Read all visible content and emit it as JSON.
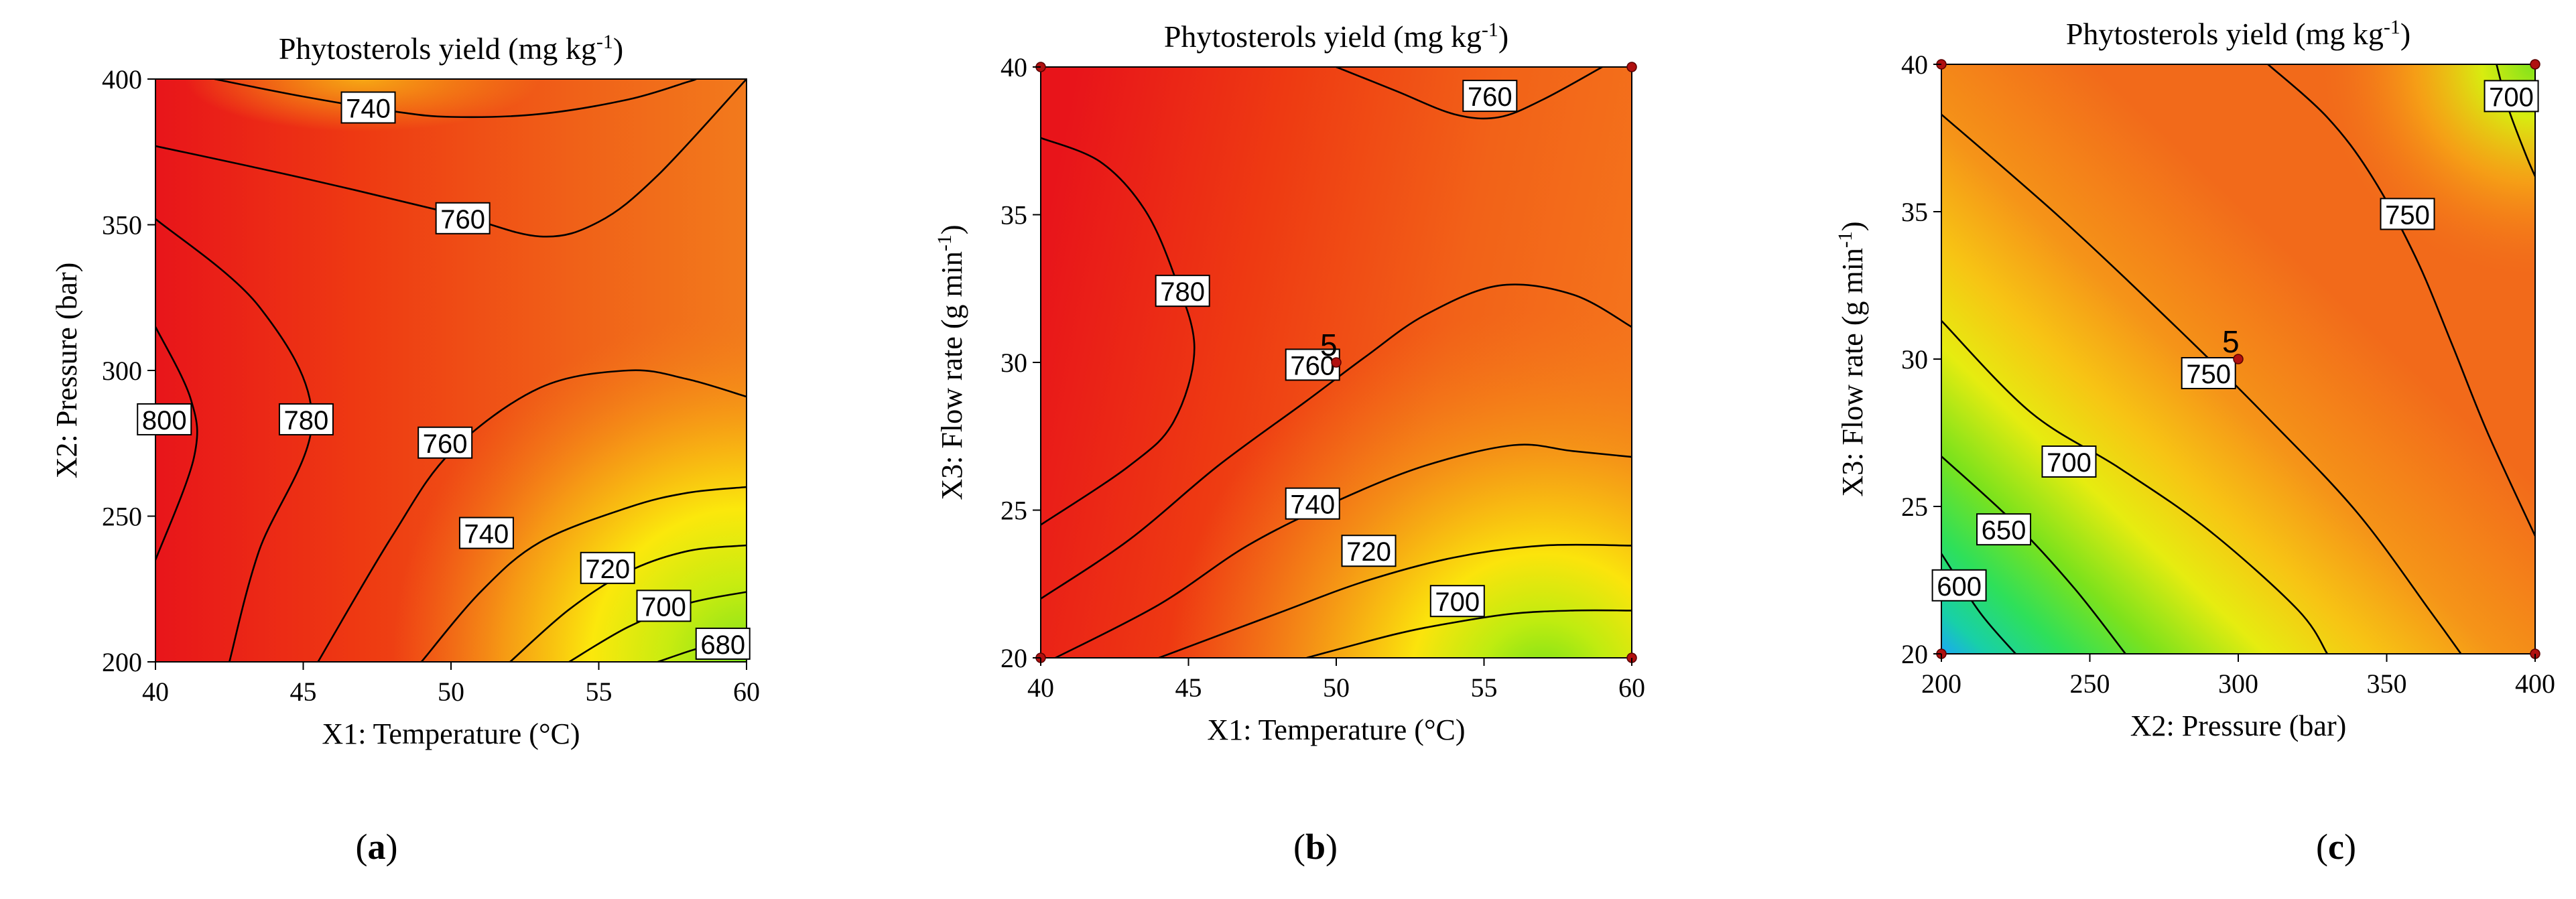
{
  "chart_data": [
    {
      "id": "a",
      "type": "contour",
      "panel_label": "(a)",
      "title": "Phytosterols yield (mg kg",
      "title_sup": "-1",
      "title_end": ")",
      "xlabel": "X1: Temperature (°C)",
      "ylabel": "X2: Pressure (bar)",
      "xlim": [
        40,
        60
      ],
      "ylim": [
        200,
        400
      ],
      "xticks": [
        "40",
        "45",
        "50",
        "55",
        "60"
      ],
      "yticks": [
        "200",
        "250",
        "300",
        "350",
        "400"
      ],
      "color_scale": "low=green/yellow, high=red",
      "contour_lines": [
        {
          "level": "800",
          "points": [
            [
              40.0,
              315
            ],
            [
              41.2,
              290
            ],
            [
              41.3,
              270
            ],
            [
              40.0,
              235
            ]
          ],
          "label_at": [
            40.3,
            283
          ]
        },
        {
          "level": "780",
          "points": [
            [
              40.0,
              352
            ],
            [
              43.5,
              322
            ],
            [
              45.3,
              283
            ],
            [
              43.5,
              238
            ],
            [
              42.5,
              200
            ]
          ],
          "label_at": [
            45.1,
            283
          ]
        },
        {
          "level": "760",
          "points": [
            [
              40.0,
              377
            ],
            [
              45,
              366
            ],
            [
              50,
              354
            ],
            [
              53,
              346
            ],
            [
              55,
              351
            ],
            [
              57,
              367
            ],
            [
              60,
              400
            ]
          ],
          "label_at": [
            50.4,
            352
          ]
        },
        {
          "level": "760",
          "points": [
            [
              45.5,
              200
            ],
            [
              48,
              243
            ],
            [
              50,
              272
            ],
            [
              53,
              294
            ],
            [
              56,
              300
            ],
            [
              58,
              297
            ],
            [
              60,
              291
            ]
          ],
          "label_at": [
            49.8,
            275
          ]
        },
        {
          "level": "740",
          "points": [
            [
              42,
              400
            ],
            [
              45,
              394
            ],
            [
              48,
              389
            ],
            [
              50,
              387
            ],
            [
              53,
              388
            ],
            [
              56,
              393
            ],
            [
              58,
              399
            ],
            [
              58.3,
              400
            ]
          ],
          "label_at": [
            47.2,
            390
          ]
        },
        {
          "level": "740",
          "points": [
            [
              49,
              200
            ],
            [
              51,
              224
            ],
            [
              53,
              241
            ],
            [
              56,
              253
            ],
            [
              58,
              258
            ],
            [
              60,
              260
            ]
          ],
          "label_at": [
            51.2,
            244
          ]
        },
        {
          "level": "720",
          "points": [
            [
              52,
              200
            ],
            [
              54,
              218
            ],
            [
              56,
              231
            ],
            [
              58,
              238
            ],
            [
              60,
              240
            ]
          ],
          "label_at": [
            55.3,
            232
          ]
        },
        {
          "level": "700",
          "points": [
            [
              54,
              200
            ],
            [
              56,
              212
            ],
            [
              58,
              220
            ],
            [
              60,
              224
            ]
          ],
          "label_at": [
            57.2,
            219
          ]
        },
        {
          "level": "680",
          "points": [
            [
              57,
              200
            ],
            [
              58.5,
              205
            ],
            [
              60,
              208
            ]
          ],
          "label_at": [
            59.2,
            206
          ]
        }
      ],
      "design_points": [],
      "center_label": ""
    },
    {
      "id": "b",
      "type": "contour",
      "panel_label": "(b)",
      "title": "Phytosterols yield (mg kg",
      "title_sup": "-1",
      "title_end": ")",
      "xlabel": "X1: Temperature (°C)",
      "ylabel": "X3: Flow rate (g min",
      "ylabel_sup": "-1",
      "ylabel_end": ")",
      "xlim": [
        40,
        60
      ],
      "ylim": [
        20,
        40
      ],
      "xticks": [
        "40",
        "45",
        "50",
        "55",
        "60"
      ],
      "yticks": [
        "20",
        "25",
        "30",
        "35",
        "40"
      ],
      "color_scale": "low=green/yellow, high=red",
      "contour_lines": [
        {
          "level": "780",
          "points": [
            [
              40.0,
              37.6
            ],
            [
              42,
              36.8
            ],
            [
              43.5,
              35.2
            ],
            [
              44.5,
              33
            ],
            [
              45.2,
              30.5
            ],
            [
              44.5,
              28
            ],
            [
              43,
              26.5
            ],
            [
              40.0,
              24.5
            ]
          ],
          "label_at": [
            44.8,
            32.4
          ]
        },
        {
          "level": "760",
          "points": [
            [
              50,
              40
            ],
            [
              52,
              39.2
            ],
            [
              54,
              38.4
            ],
            [
              55.5,
              38.3
            ],
            [
              57,
              38.9
            ],
            [
              59,
              40
            ]
          ],
          "label_at": [
            55.2,
            39.0
          ]
        },
        {
          "level": "760",
          "points": [
            [
              40.0,
              22
            ],
            [
              43,
              24
            ],
            [
              46,
              26.5
            ],
            [
              49,
              28.7
            ],
            [
              51,
              30.2
            ],
            [
              53,
              31.6
            ],
            [
              55.5,
              32.6
            ],
            [
              58,
              32.3
            ],
            [
              60,
              31.2
            ]
          ],
          "label_at": [
            49.2,
            29.9
          ]
        },
        {
          "level": "740",
          "points": [
            [
              40.5,
              20
            ],
            [
              44,
              21.8
            ],
            [
              47,
              23.8
            ],
            [
              50,
              25.3
            ],
            [
              53,
              26.5
            ],
            [
              56,
              27.2
            ],
            [
              58,
              27
            ],
            [
              60,
              26.8
            ]
          ],
          "label_at": [
            49.2,
            25.2
          ]
        },
        {
          "level": "720",
          "points": [
            [
              44,
              20
            ],
            [
              48,
              21.5
            ],
            [
              51,
              22.6
            ],
            [
              54,
              23.4
            ],
            [
              57,
              23.8
            ],
            [
              60,
              23.8
            ]
          ],
          "label_at": [
            51.1,
            23.6
          ]
        },
        {
          "level": "700",
          "points": [
            [
              49,
              20
            ],
            [
              52,
              20.8
            ],
            [
              54,
              21.2
            ],
            [
              56,
              21.5
            ],
            [
              58,
              21.6
            ],
            [
              60,
              21.6
            ]
          ],
          "label_at": [
            54.1,
            21.9
          ]
        }
      ],
      "design_points": [
        [
          40,
          20
        ],
        [
          40,
          40
        ],
        [
          60,
          20
        ],
        [
          60,
          40
        ],
        [
          50,
          30
        ]
      ],
      "center_label": "5"
    },
    {
      "id": "c",
      "type": "contour",
      "panel_label": "(c)",
      "title": "Phytosterols yield (mg kg",
      "title_sup": "-1",
      "title_end": ")",
      "xlabel": "X2: Pressure (bar)",
      "ylabel": "X3: Flow rate (g min",
      "ylabel_sup": "-1",
      "ylabel_end": ")",
      "xlim": [
        200,
        400
      ],
      "ylim": [
        20,
        40
      ],
      "xticks": [
        "200",
        "250",
        "300",
        "350",
        "400"
      ],
      "yticks": [
        "20",
        "25",
        "30",
        "35",
        "40"
      ],
      "color_scale": "low=blue/green, high=orange",
      "contour_lines": [
        {
          "level": "700",
          "points": [
            [
              387,
              40
            ],
            [
              391,
              38.5
            ],
            [
              397,
              36.9
            ],
            [
              400,
              36.2
            ]
          ],
          "label_at": [
            392,
            38.9
          ]
        },
        {
          "level": "750",
          "points": [
            [
              310,
              40
            ],
            [
              330,
              38.2
            ],
            [
              345,
              36.2
            ],
            [
              360,
              33.4
            ],
            [
              372,
              30.5
            ],
            [
              384,
              27.5
            ],
            [
              400,
              24
            ]
          ],
          "label_at": [
            357,
            34.9
          ]
        },
        {
          "level": "750",
          "points": [
            [
              200,
              38.3
            ],
            [
              240,
              34.8
            ],
            [
              280,
              31
            ],
            [
              310,
              28
            ],
            [
              340,
              24.8
            ],
            [
              365,
              21.4
            ],
            [
              375,
              20
            ]
          ],
          "label_at": [
            290,
            29.5
          ]
        },
        {
          "level": "700",
          "points": [
            [
              200,
              31.3
            ],
            [
              230,
              28.2
            ],
            [
              260,
              26.3
            ],
            [
              290,
              24.2
            ],
            [
              320,
              21.5
            ],
            [
              330,
              20
            ]
          ],
          "label_at": [
            243,
            26.5
          ]
        },
        {
          "level": "650",
          "points": [
            [
              200,
              26.7
            ],
            [
              225,
              24.4
            ],
            [
              245,
              22.2
            ],
            [
              262,
              20
            ]
          ],
          "label_at": [
            221,
            24.2
          ]
        },
        {
          "level": "600",
          "points": [
            [
              200,
              23.4
            ],
            [
              213,
              21.4
            ],
            [
              225,
              20
            ]
          ],
          "label_at": [
            206,
            22.3
          ]
        }
      ],
      "design_points": [
        [
          200,
          20
        ],
        [
          200,
          40
        ],
        [
          400,
          20
        ],
        [
          400,
          40
        ],
        [
          300,
          30
        ]
      ],
      "center_label": "5"
    }
  ]
}
